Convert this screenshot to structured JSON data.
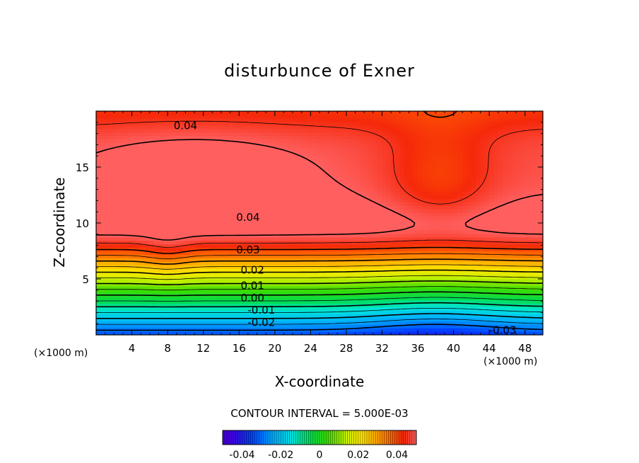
{
  "chart_data": {
    "type": "contour",
    "title": "disturbunce of Exner",
    "xlabel": "X-coordinate",
    "ylabel": "Z-coordinate",
    "x_unit": "(×1000 m)",
    "y_unit": "(×1000 m)",
    "xlim": [
      0,
      50
    ],
    "ylim": [
      0,
      20
    ],
    "x_ticks": [
      4,
      8,
      12,
      16,
      20,
      24,
      28,
      32,
      36,
      40,
      44,
      48
    ],
    "y_ticks": [
      5,
      10,
      15
    ],
    "contour_interval_label": "CONTOUR INTERVAL = 5.000E-03",
    "contour_labels": [
      {
        "text": "0.04",
        "x": 10,
        "z": 18.7
      },
      {
        "text": "0.04",
        "x": 17,
        "z": 10.5
      },
      {
        "text": "0.03",
        "x": 17,
        "z": 7.6
      },
      {
        "text": "0.02",
        "x": 17.5,
        "z": 5.8
      },
      {
        "text": "0.01",
        "x": 17.5,
        "z": 4.4
      },
      {
        "text": "0.00",
        "x": 17.5,
        "z": 3.3
      },
      {
        "text": "-0.01",
        "x": 18.5,
        "z": 2.2
      },
      {
        "text": "-0.02",
        "x": 18.5,
        "z": 1.1
      },
      {
        "text": "-0.03",
        "x": 45.5,
        "z": 0.4
      }
    ],
    "colorbar": {
      "min": -0.05,
      "max": 0.05,
      "tick_values": [
        -0.04,
        -0.02,
        0,
        0.02,
        0.04
      ],
      "tick_labels": [
        "-0.04",
        "-0.02",
        "0",
        "0.02",
        "0.04"
      ]
    }
  }
}
